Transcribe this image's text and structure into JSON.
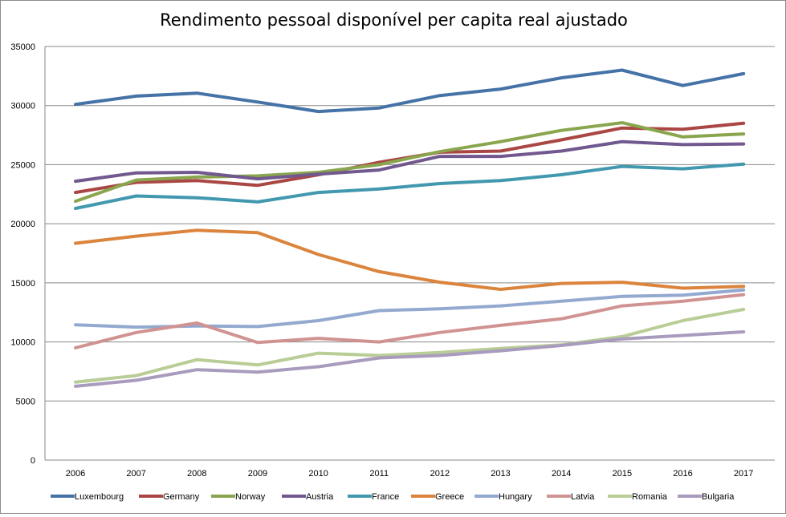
{
  "chart_data": {
    "type": "line",
    "title": "Rendimento pessoal disponível per capita real ajustado",
    "xlabel": "",
    "ylabel": "",
    "x": [
      "2006",
      "2007",
      "2008",
      "2009",
      "2010",
      "2011",
      "2012",
      "2013",
      "2014",
      "2015",
      "2016",
      "2017"
    ],
    "ylim": [
      0,
      35000
    ],
    "yticks": [
      "0",
      "5000",
      "10000",
      "15000",
      "20000",
      "25000",
      "30000",
      "35000"
    ],
    "grid": true,
    "legend_position": "bottom",
    "series": [
      {
        "name": "Luxembourg",
        "color": "#4572a7",
        "values": [
          30100,
          30800,
          31050,
          30300,
          29500,
          29800,
          30850,
          31400,
          32350,
          33000,
          31700,
          32700
        ]
      },
      {
        "name": "Germany",
        "color": "#aa4643",
        "values": [
          22650,
          23500,
          23650,
          23250,
          24150,
          25200,
          26050,
          26150,
          27100,
          28100,
          28000,
          28500
        ]
      },
      {
        "name": "Norway",
        "color": "#89a54e",
        "values": [
          21900,
          23700,
          23950,
          24050,
          24350,
          25000,
          26100,
          26950,
          27900,
          28550,
          27350,
          27600
        ]
      },
      {
        "name": "Austria",
        "color": "#71588f",
        "values": [
          23600,
          24300,
          24350,
          23800,
          24200,
          24550,
          25700,
          25700,
          26150,
          26950,
          26700,
          26750
        ]
      },
      {
        "name": "France",
        "color": "#4198af",
        "values": [
          21300,
          22350,
          22200,
          21850,
          22650,
          22950,
          23400,
          23650,
          24150,
          24850,
          24650,
          25050
        ]
      },
      {
        "name": "Greece",
        "color": "#db843d",
        "values": [
          18350,
          18950,
          19450,
          19250,
          17400,
          15950,
          15050,
          14450,
          14950,
          15050,
          14550,
          14700
        ]
      },
      {
        "name": "Hungary",
        "color": "#93a9cf",
        "values": [
          11450,
          11250,
          11350,
          11300,
          11800,
          12650,
          12800,
          13050,
          13450,
          13850,
          13950,
          14400
        ]
      },
      {
        "name": "Latvia",
        "color": "#d19392",
        "values": [
          9500,
          10800,
          11600,
          9950,
          10300,
          10000,
          10800,
          11400,
          11950,
          13050,
          13450,
          14000
        ]
      },
      {
        "name": "Romania",
        "color": "#b9cd96",
        "values": [
          6600,
          7150,
          8500,
          8050,
          9050,
          8850,
          9100,
          9450,
          9750,
          10450,
          11800,
          12750
        ]
      },
      {
        "name": "Bulgaria",
        "color": "#a99bbd",
        "values": [
          6250,
          6750,
          7650,
          7450,
          7900,
          8650,
          8850,
          9250,
          9700,
          10250,
          10550,
          10850
        ]
      }
    ]
  }
}
